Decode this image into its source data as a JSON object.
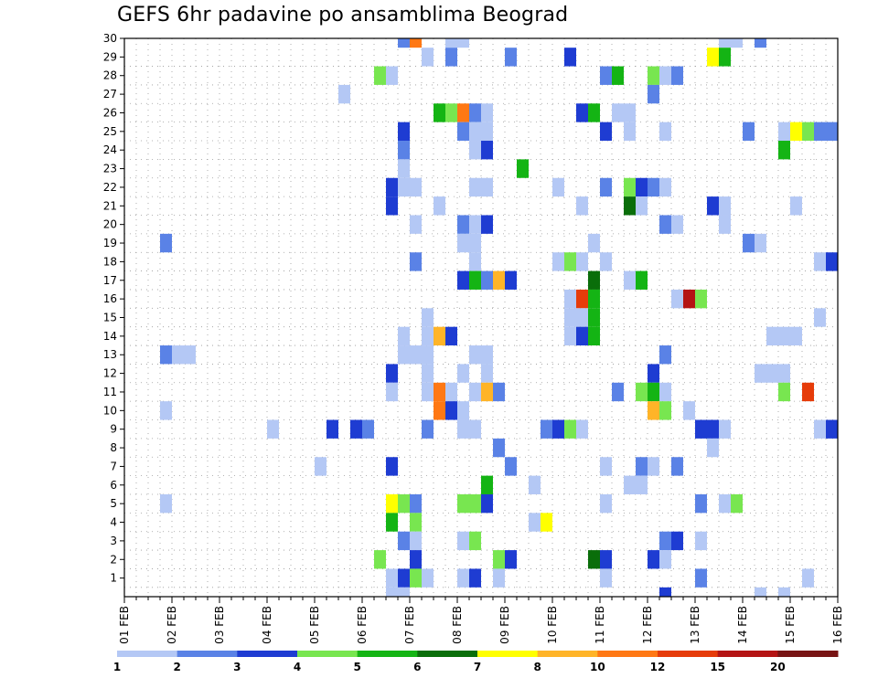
{
  "chart_data": {
    "type": "heatmap",
    "title": "GEFS 6hr padavine po ansamblima Beograd",
    "xlabel": "",
    "ylabel": "",
    "x_tick_labels": [
      "01 FEB",
      "02 FEB",
      "03 FEB",
      "04 FEB",
      "05 FEB",
      "06 FEB",
      "07 FEB",
      "08 FEB",
      "09 FEB",
      "10 FEB",
      "11 FEB",
      "12 FEB",
      "13 FEB",
      "14 FEB",
      "15 FEB",
      "16 FEB"
    ],
    "x_range_days": [
      1,
      16
    ],
    "time_step_hours": 6,
    "y_tick_labels": [
      "1",
      "2",
      "3",
      "4",
      "5",
      "6",
      "7",
      "8",
      "9",
      "10",
      "11",
      "12",
      "13",
      "14",
      "15",
      "16",
      "17",
      "18",
      "19",
      "20",
      "21",
      "22",
      "23",
      "24",
      "25",
      "26",
      "27",
      "28",
      "29",
      "30"
    ],
    "y_range_members": [
      0,
      30
    ],
    "legend": {
      "breaks": [
        "1",
        "2",
        "3",
        "4",
        "5",
        "6",
        "7",
        "8",
        "10",
        "12",
        "15",
        "20"
      ],
      "colors": [
        "#b4c8f5",
        "#5a82e6",
        "#1e3cd2",
        "#78e650",
        "#14b414",
        "#0a6e0a",
        "#ffff00",
        "#ffb428",
        "#ff7814",
        "#e63c0a",
        "#b41414",
        "#781414"
      ]
    },
    "cells": [
      {
        "m": 30,
        "t": 24,
        "c": 2
      },
      {
        "m": 30,
        "t": 25,
        "c": 9
      },
      {
        "m": 30,
        "t": 28,
        "c": 1
      },
      {
        "m": 30,
        "t": 29,
        "c": 1
      },
      {
        "m": 30,
        "t": 51,
        "c": 1
      },
      {
        "m": 30,
        "t": 52,
        "c": 1
      },
      {
        "m": 30,
        "t": 54,
        "c": 2
      },
      {
        "m": 29,
        "t": 26,
        "c": 1
      },
      {
        "m": 29,
        "t": 28,
        "c": 2
      },
      {
        "m": 29,
        "t": 33,
        "c": 2
      },
      {
        "m": 29,
        "t": 38,
        "c": 3
      },
      {
        "m": 29,
        "t": 50,
        "c": 7
      },
      {
        "m": 29,
        "t": 51,
        "c": 5
      },
      {
        "m": 28,
        "t": 22,
        "c": 4
      },
      {
        "m": 28,
        "t": 23,
        "c": 1
      },
      {
        "m": 28,
        "t": 41,
        "c": 2
      },
      {
        "m": 28,
        "t": 42,
        "c": 5
      },
      {
        "m": 28,
        "t": 45,
        "c": 4
      },
      {
        "m": 28,
        "t": 46,
        "c": 1
      },
      {
        "m": 28,
        "t": 47,
        "c": 2
      },
      {
        "m": 27,
        "t": 19,
        "c": 1
      },
      {
        "m": 27,
        "t": 45,
        "c": 2
      },
      {
        "m": 26,
        "t": 27,
        "c": 5
      },
      {
        "m": 26,
        "t": 28,
        "c": 4
      },
      {
        "m": 26,
        "t": 29,
        "c": 9
      },
      {
        "m": 26,
        "t": 30,
        "c": 2
      },
      {
        "m": 26,
        "t": 31,
        "c": 1
      },
      {
        "m": 26,
        "t": 39,
        "c": 3
      },
      {
        "m": 26,
        "t": 40,
        "c": 5
      },
      {
        "m": 26,
        "t": 42,
        "c": 1
      },
      {
        "m": 26,
        "t": 43,
        "c": 1
      },
      {
        "m": 25,
        "t": 24,
        "c": 3
      },
      {
        "m": 25,
        "t": 29,
        "c": 2
      },
      {
        "m": 25,
        "t": 30,
        "c": 1
      },
      {
        "m": 25,
        "t": 31,
        "c": 1
      },
      {
        "m": 25,
        "t": 41,
        "c": 3
      },
      {
        "m": 25,
        "t": 43,
        "c": 1
      },
      {
        "m": 25,
        "t": 46,
        "c": 1
      },
      {
        "m": 25,
        "t": 53,
        "c": 2
      },
      {
        "m": 25,
        "t": 56,
        "c": 1
      },
      {
        "m": 25,
        "t": 57,
        "c": 7
      },
      {
        "m": 25,
        "t": 58,
        "c": 4
      },
      {
        "m": 25,
        "t": 59,
        "c": 2
      },
      {
        "m": 25,
        "t": 60,
        "c": 2
      },
      {
        "m": 24,
        "t": 24,
        "c": 2
      },
      {
        "m": 24,
        "t": 30,
        "c": 1
      },
      {
        "m": 24,
        "t": 31,
        "c": 3
      },
      {
        "m": 24,
        "t": 56,
        "c": 5
      },
      {
        "m": 23,
        "t": 24,
        "c": 1
      },
      {
        "m": 23,
        "t": 34,
        "c": 5
      },
      {
        "m": 22,
        "t": 23,
        "c": 3
      },
      {
        "m": 22,
        "t": 24,
        "c": 1
      },
      {
        "m": 22,
        "t": 25,
        "c": 1
      },
      {
        "m": 22,
        "t": 30,
        "c": 1
      },
      {
        "m": 22,
        "t": 31,
        "c": 1
      },
      {
        "m": 22,
        "t": 37,
        "c": 1
      },
      {
        "m": 22,
        "t": 41,
        "c": 2
      },
      {
        "m": 22,
        "t": 43,
        "c": 4
      },
      {
        "m": 22,
        "t": 44,
        "c": 3
      },
      {
        "m": 22,
        "t": 45,
        "c": 2
      },
      {
        "m": 22,
        "t": 46,
        "c": 1
      },
      {
        "m": 21,
        "t": 23,
        "c": 3
      },
      {
        "m": 21,
        "t": 27,
        "c": 1
      },
      {
        "m": 21,
        "t": 39,
        "c": 1
      },
      {
        "m": 21,
        "t": 43,
        "c": 6
      },
      {
        "m": 21,
        "t": 44,
        "c": 1
      },
      {
        "m": 21,
        "t": 50,
        "c": 3
      },
      {
        "m": 21,
        "t": 51,
        "c": 1
      },
      {
        "m": 21,
        "t": 57,
        "c": 1
      },
      {
        "m": 20,
        "t": 25,
        "c": 1
      },
      {
        "m": 20,
        "t": 29,
        "c": 2
      },
      {
        "m": 20,
        "t": 30,
        "c": 1
      },
      {
        "m": 20,
        "t": 31,
        "c": 3
      },
      {
        "m": 20,
        "t": 46,
        "c": 2
      },
      {
        "m": 20,
        "t": 47,
        "c": 1
      },
      {
        "m": 20,
        "t": 51,
        "c": 1
      },
      {
        "m": 19,
        "t": 4,
        "c": 2
      },
      {
        "m": 19,
        "t": 29,
        "c": 1
      },
      {
        "m": 19,
        "t": 30,
        "c": 1
      },
      {
        "m": 19,
        "t": 40,
        "c": 1
      },
      {
        "m": 19,
        "t": 53,
        "c": 2
      },
      {
        "m": 19,
        "t": 54,
        "c": 1
      },
      {
        "m": 18,
        "t": 25,
        "c": 2
      },
      {
        "m": 18,
        "t": 30,
        "c": 1
      },
      {
        "m": 18,
        "t": 37,
        "c": 1
      },
      {
        "m": 18,
        "t": 38,
        "c": 4
      },
      {
        "m": 18,
        "t": 39,
        "c": 1
      },
      {
        "m": 18,
        "t": 41,
        "c": 1
      },
      {
        "m": 18,
        "t": 59,
        "c": 1
      },
      {
        "m": 18,
        "t": 60,
        "c": 3
      },
      {
        "m": 17,
        "t": 29,
        "c": 3
      },
      {
        "m": 17,
        "t": 30,
        "c": 5
      },
      {
        "m": 17,
        "t": 31,
        "c": 2
      },
      {
        "m": 17,
        "t": 32,
        "c": 8
      },
      {
        "m": 17,
        "t": 33,
        "c": 3
      },
      {
        "m": 17,
        "t": 40,
        "c": 6
      },
      {
        "m": 17,
        "t": 43,
        "c": 1
      },
      {
        "m": 17,
        "t": 44,
        "c": 5
      },
      {
        "m": 16,
        "t": 38,
        "c": 1
      },
      {
        "m": 16,
        "t": 39,
        "c": 10
      },
      {
        "m": 16,
        "t": 40,
        "c": 5
      },
      {
        "m": 16,
        "t": 47,
        "c": 1
      },
      {
        "m": 16,
        "t": 48,
        "c": 11
      },
      {
        "m": 16,
        "t": 49,
        "c": 4
      },
      {
        "m": 15,
        "t": 26,
        "c": 1
      },
      {
        "m": 15,
        "t": 38,
        "c": 1
      },
      {
        "m": 15,
        "t": 39,
        "c": 1
      },
      {
        "m": 15,
        "t": 40,
        "c": 5
      },
      {
        "m": 15,
        "t": 59,
        "c": 1
      },
      {
        "m": 14,
        "t": 24,
        "c": 1
      },
      {
        "m": 14,
        "t": 26,
        "c": 1
      },
      {
        "m": 14,
        "t": 27,
        "c": 8
      },
      {
        "m": 14,
        "t": 28,
        "c": 3
      },
      {
        "m": 14,
        "t": 38,
        "c": 1
      },
      {
        "m": 14,
        "t": 39,
        "c": 3
      },
      {
        "m": 14,
        "t": 40,
        "c": 5
      },
      {
        "m": 14,
        "t": 55,
        "c": 1
      },
      {
        "m": 14,
        "t": 56,
        "c": 1
      },
      {
        "m": 14,
        "t": 57,
        "c": 1
      },
      {
        "m": 13,
        "t": 4,
        "c": 2
      },
      {
        "m": 13,
        "t": 5,
        "c": 1
      },
      {
        "m": 13,
        "t": 6,
        "c": 1
      },
      {
        "m": 13,
        "t": 24,
        "c": 1
      },
      {
        "m": 13,
        "t": 25,
        "c": 1
      },
      {
        "m": 13,
        "t": 26,
        "c": 1
      },
      {
        "m": 13,
        "t": 30,
        "c": 1
      },
      {
        "m": 13,
        "t": 31,
        "c": 1
      },
      {
        "m": 13,
        "t": 46,
        "c": 2
      },
      {
        "m": 12,
        "t": 23,
        "c": 3
      },
      {
        "m": 12,
        "t": 26,
        "c": 1
      },
      {
        "m": 12,
        "t": 29,
        "c": 1
      },
      {
        "m": 12,
        "t": 31,
        "c": 1
      },
      {
        "m": 12,
        "t": 45,
        "c": 3
      },
      {
        "m": 12,
        "t": 54,
        "c": 1
      },
      {
        "m": 12,
        "t": 55,
        "c": 1
      },
      {
        "m": 12,
        "t": 56,
        "c": 1
      },
      {
        "m": 11,
        "t": 23,
        "c": 1
      },
      {
        "m": 11,
        "t": 26,
        "c": 1
      },
      {
        "m": 11,
        "t": 27,
        "c": 9
      },
      {
        "m": 11,
        "t": 28,
        "c": 1
      },
      {
        "m": 11,
        "t": 30,
        "c": 1
      },
      {
        "m": 11,
        "t": 31,
        "c": 8
      },
      {
        "m": 11,
        "t": 32,
        "c": 2
      },
      {
        "m": 11,
        "t": 42,
        "c": 2
      },
      {
        "m": 11,
        "t": 44,
        "c": 4
      },
      {
        "m": 11,
        "t": 45,
        "c": 5
      },
      {
        "m": 11,
        "t": 46,
        "c": 1
      },
      {
        "m": 11,
        "t": 56,
        "c": 4
      },
      {
        "m": 11,
        "t": 58,
        "c": 10
      },
      {
        "m": 10,
        "t": 4,
        "c": 1
      },
      {
        "m": 10,
        "t": 27,
        "c": 9
      },
      {
        "m": 10,
        "t": 28,
        "c": 3
      },
      {
        "m": 10,
        "t": 29,
        "c": 1
      },
      {
        "m": 10,
        "t": 45,
        "c": 8
      },
      {
        "m": 10,
        "t": 46,
        "c": 4
      },
      {
        "m": 10,
        "t": 48,
        "c": 1
      },
      {
        "m": 9,
        "t": 13,
        "c": 1
      },
      {
        "m": 9,
        "t": 18,
        "c": 3
      },
      {
        "m": 9,
        "t": 20,
        "c": 3
      },
      {
        "m": 9,
        "t": 21,
        "c": 2
      },
      {
        "m": 9,
        "t": 26,
        "c": 2
      },
      {
        "m": 9,
        "t": 29,
        "c": 1
      },
      {
        "m": 9,
        "t": 30,
        "c": 1
      },
      {
        "m": 9,
        "t": 36,
        "c": 2
      },
      {
        "m": 9,
        "t": 37,
        "c": 3
      },
      {
        "m": 9,
        "t": 38,
        "c": 4
      },
      {
        "m": 9,
        "t": 39,
        "c": 1
      },
      {
        "m": 9,
        "t": 49,
        "c": 3
      },
      {
        "m": 9,
        "t": 50,
        "c": 3
      },
      {
        "m": 9,
        "t": 51,
        "c": 1
      },
      {
        "m": 9,
        "t": 59,
        "c": 1
      },
      {
        "m": 9,
        "t": 60,
        "c": 3
      },
      {
        "m": 8,
        "t": 32,
        "c": 2
      },
      {
        "m": 8,
        "t": 50,
        "c": 1
      },
      {
        "m": 7,
        "t": 17,
        "c": 1
      },
      {
        "m": 7,
        "t": 23,
        "c": 3
      },
      {
        "m": 7,
        "t": 33,
        "c": 2
      },
      {
        "m": 7,
        "t": 41,
        "c": 1
      },
      {
        "m": 7,
        "t": 44,
        "c": 2
      },
      {
        "m": 7,
        "t": 45,
        "c": 1
      },
      {
        "m": 7,
        "t": 47,
        "c": 2
      },
      {
        "m": 6,
        "t": 31,
        "c": 5
      },
      {
        "m": 6,
        "t": 35,
        "c": 1
      },
      {
        "m": 6,
        "t": 43,
        "c": 1
      },
      {
        "m": 6,
        "t": 44,
        "c": 1
      },
      {
        "m": 5,
        "t": 4,
        "c": 1
      },
      {
        "m": 5,
        "t": 23,
        "c": 7
      },
      {
        "m": 5,
        "t": 24,
        "c": 4
      },
      {
        "m": 5,
        "t": 25,
        "c": 2
      },
      {
        "m": 5,
        "t": 29,
        "c": 4
      },
      {
        "m": 5,
        "t": 30,
        "c": 4
      },
      {
        "m": 5,
        "t": 31,
        "c": 3
      },
      {
        "m": 5,
        "t": 41,
        "c": 1
      },
      {
        "m": 5,
        "t": 49,
        "c": 2
      },
      {
        "m": 5,
        "t": 51,
        "c": 1
      },
      {
        "m": 5,
        "t": 52,
        "c": 4
      },
      {
        "m": 4,
        "t": 23,
        "c": 5
      },
      {
        "m": 4,
        "t": 25,
        "c": 4
      },
      {
        "m": 4,
        "t": 35,
        "c": 1
      },
      {
        "m": 4,
        "t": 36,
        "c": 7
      },
      {
        "m": 3,
        "t": 24,
        "c": 2
      },
      {
        "m": 3,
        "t": 25,
        "c": 1
      },
      {
        "m": 3,
        "t": 29,
        "c": 1
      },
      {
        "m": 3,
        "t": 30,
        "c": 4
      },
      {
        "m": 3,
        "t": 46,
        "c": 2
      },
      {
        "m": 3,
        "t": 47,
        "c": 3
      },
      {
        "m": 3,
        "t": 49,
        "c": 1
      },
      {
        "m": 2,
        "t": 22,
        "c": 4
      },
      {
        "m": 2,
        "t": 25,
        "c": 3
      },
      {
        "m": 2,
        "t": 32,
        "c": 4
      },
      {
        "m": 2,
        "t": 33,
        "c": 3
      },
      {
        "m": 2,
        "t": 40,
        "c": 6
      },
      {
        "m": 2,
        "t": 41,
        "c": 3
      },
      {
        "m": 2,
        "t": 45,
        "c": 3
      },
      {
        "m": 2,
        "t": 46,
        "c": 1
      },
      {
        "m": 1,
        "t": 23,
        "c": 1
      },
      {
        "m": 1,
        "t": 24,
        "c": 3
      },
      {
        "m": 1,
        "t": 25,
        "c": 4
      },
      {
        "m": 1,
        "t": 26,
        "c": 1
      },
      {
        "m": 1,
        "t": 29,
        "c": 1
      },
      {
        "m": 1,
        "t": 30,
        "c": 3
      },
      {
        "m": 1,
        "t": 32,
        "c": 1
      },
      {
        "m": 1,
        "t": 41,
        "c": 1
      },
      {
        "m": 1,
        "t": 49,
        "c": 2
      },
      {
        "m": 1,
        "t": 58,
        "c": 1
      },
      {
        "m": 0,
        "t": 23,
        "c": 1
      },
      {
        "m": 0,
        "t": 24,
        "c": 1
      },
      {
        "m": 0,
        "t": 46,
        "c": 3
      },
      {
        "m": 0,
        "t": 54,
        "c": 1
      },
      {
        "m": 0,
        "t": 56,
        "c": 1
      }
    ]
  }
}
